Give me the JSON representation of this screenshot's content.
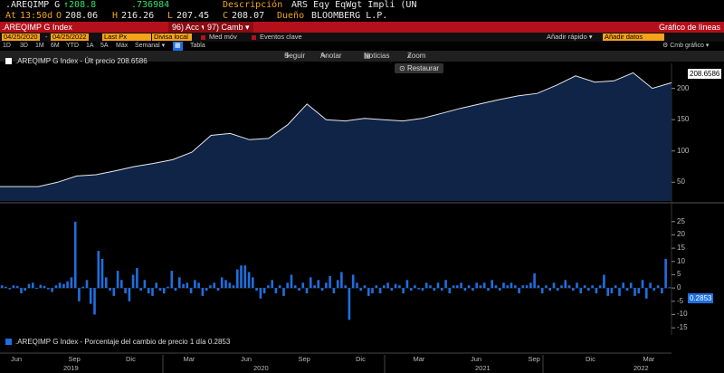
{
  "header": {
    "ticker": ".AREQIMP G",
    "last_arrow": "↑",
    "last": "208.8",
    "change": ".736984",
    "desc_label": "Descripción",
    "desc_value": "ARS Eqy EqWgt Impli (UN",
    "at_label": "At",
    "time": "13:50d",
    "open_label": "O",
    "open": "208.06",
    "high_label": "H",
    "high": "216.26",
    "low_label": "L",
    "low": "207.45",
    "close_label": "C",
    "close": "208.07",
    "owner_label": "Dueño",
    "owner": "BLOOMBERG L.P."
  },
  "title_bar": {
    "title": ".AREQIMP G Index",
    "acc": "96) Acc ▾",
    "camb": "97) Camb ▾",
    "right": "Gráfico de líneas"
  },
  "fields": {
    "start_date": "04/25/2020",
    "end_date": "04/25/2022",
    "last_px": "Last Px",
    "divisa": "Divisa local",
    "med_mov": "Med móv",
    "eventos": "Eventos clave",
    "anadir_rapido": "Añadir rápido ▾",
    "anadir_datos": "Añadir datos"
  },
  "ranges": [
    "1D",
    "3D",
    "1M",
    "6M",
    "YTD",
    "1A",
    "5A",
    "Máx",
    "Semanal ▾"
  ],
  "tabla_label": "Tabla",
  "cmb_grafico": "⚙ Cmb gráfico ▾",
  "toolbar": {
    "seguir": "Seguir",
    "anotar": "Anotar",
    "noticias": "Noticias",
    "zoom": "Zoom",
    "restaurar": "Restaurar"
  },
  "upper_legend": ".AREQIMP G Index - Últ precio 208.6586",
  "lower_legend": ".AREQIMP G Index - Porcentaje del cambio de precio 1 día 0.2853",
  "last_price_box": "208.6586",
  "last_pct_box": "0.2853",
  "colors": {
    "accent": "#f4a21a",
    "bar": "#1e6fe0",
    "fill": "#0f2447",
    "line": "#e8e8e8",
    "titlebar": "#b3101b"
  },
  "chart_data": [
    {
      "type": "area",
      "x_months": [
        "2019-05",
        "2019-06",
        "2019-07",
        "2019-08",
        "2019-09",
        "2019-10",
        "2019-11",
        "2019-12",
        "2020-01",
        "2020-02",
        "2020-03",
        "2020-04",
        "2020-05",
        "2020-06",
        "2020-07",
        "2020-08",
        "2020-09",
        "2020-10",
        "2020-11",
        "2020-12",
        "2021-01",
        "2021-02",
        "2021-03",
        "2021-04",
        "2021-05",
        "2021-06",
        "2021-07",
        "2021-08",
        "2021-09",
        "2021-10",
        "2021-11",
        "2021-12",
        "2022-01",
        "2022-02",
        "2022-03",
        "2022-04"
      ],
      "values": [
        43,
        43,
        43,
        50,
        60,
        62,
        68,
        75,
        80,
        86,
        98,
        125,
        128,
        118,
        120,
        142,
        175,
        150,
        148,
        152,
        150,
        148,
        152,
        160,
        168,
        175,
        182,
        188,
        192,
        205,
        220,
        210,
        212,
        225,
        200,
        209
      ],
      "ylim": [
        20,
        240
      ],
      "yticks": [
        50,
        100,
        150,
        200
      ],
      "last": 208.6586,
      "legend": ".AREQIMP G Index - Últ precio 208.6586"
    },
    {
      "type": "bar",
      "values": [
        1,
        0.5,
        -0.5,
        1,
        0.8,
        -2,
        -1,
        1.5,
        2,
        -0.3,
        1.2,
        0.8,
        -0.5,
        -1.5,
        1,
        2,
        1.5,
        2.5,
        4,
        25,
        -5,
        0.5,
        3,
        -6,
        -10,
        14,
        11,
        4,
        -1,
        -3,
        6.5,
        3,
        -2,
        -5,
        5,
        7.5,
        -1,
        3,
        -2,
        -3,
        2,
        -1,
        -2,
        0.5,
        6.5,
        -1,
        4,
        1.5,
        2,
        -2,
        3,
        2,
        -3,
        -1,
        1,
        2,
        -1,
        4,
        3,
        2,
        1,
        7,
        8.5,
        8.5,
        6,
        4,
        -1,
        -4,
        -2,
        1,
        3,
        -2,
        1,
        -3,
        2,
        5,
        1,
        -1,
        2,
        -2,
        4,
        1,
        3,
        -1,
        2,
        4.5,
        -2,
        3,
        6,
        1,
        -12,
        5,
        2,
        -1,
        1,
        -3,
        -2,
        1,
        -2,
        1,
        2,
        -1,
        1.5,
        1,
        -2,
        3,
        -1,
        1,
        -0.5,
        -1,
        2,
        1,
        -1,
        2,
        -1,
        3,
        -2,
        1,
        1,
        2,
        -1,
        1,
        -1,
        2,
        1,
        2,
        -1,
        3,
        1,
        -1,
        2,
        1,
        2,
        1,
        -2,
        1,
        1,
        2,
        5.5,
        1,
        -2,
        1,
        -1,
        2,
        -1,
        1,
        3,
        1,
        -1,
        2,
        -2,
        1,
        -1,
        1,
        -2,
        1,
        5,
        -3,
        -2,
        1,
        -3,
        2,
        -1,
        2,
        -3,
        -2,
        3,
        -4,
        2,
        -1,
        1,
        -2,
        11,
        0.3
      ],
      "ylim": [
        -17,
        28
      ],
      "yticks": [
        25,
        20,
        15,
        10,
        5,
        0,
        -5,
        -10,
        -15
      ],
      "last": 0.2853,
      "legend": ".AREQIMP G Index - Porcentaje del cambio de precio 1 día 0.2853"
    }
  ],
  "x_axis": {
    "months": [
      {
        "label": "Jun",
        "pos": 0.012
      },
      {
        "label": "Sep",
        "pos": 0.138
      },
      {
        "label": "Dic",
        "pos": 0.262
      },
      {
        "label": "Mar",
        "pos": 0.385
      },
      {
        "label": "Jun",
        "pos": 0.508
      },
      {
        "label": "Sep",
        "pos": 0.632
      },
      {
        "label": "Dic",
        "pos": 0.755
      },
      {
        "label": "Mar",
        "pos": 0.88
      },
      {
        "label": "Jun",
        "pos": 1.0
      },
      {
        "label": "Sep",
        "pos": 1.12
      },
      {
        "label": "Dic",
        "pos": 1.24
      },
      {
        "label": "Mar",
        "pos": 1.37
      }
    ],
    "years": [
      "2019",
      "2020",
      "2021",
      "2022"
    ]
  }
}
